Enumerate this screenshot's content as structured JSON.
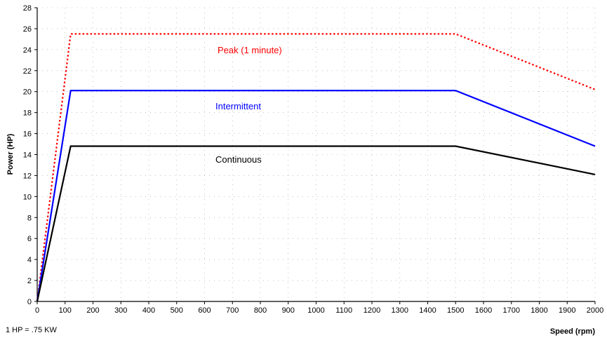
{
  "chart_data": {
    "type": "line",
    "xlabel": "Speed (rpm)",
    "ylabel": "Power (HP)",
    "xlim": [
      0,
      2000
    ],
    "ylim": [
      0,
      28
    ],
    "xticks": [
      0,
      100,
      200,
      300,
      400,
      500,
      600,
      700,
      800,
      900,
      1000,
      1100,
      1200,
      1300,
      1400,
      1500,
      1600,
      1700,
      1800,
      1900,
      2000
    ],
    "yticks": [
      0,
      2,
      4,
      6,
      8,
      10,
      12,
      14,
      16,
      18,
      20,
      22,
      24,
      26,
      28
    ],
    "grid": true,
    "series": [
      {
        "name": "Peak (1 minute)",
        "color": "#ff0000",
        "dash": "dotted",
        "x": [
          0,
          120,
          1500,
          2000
        ],
        "y": [
          0,
          25.5,
          25.5,
          20.2
        ]
      },
      {
        "name": "Intermittent",
        "color": "#0000ff",
        "dash": "solid",
        "x": [
          0,
          120,
          1500,
          2000
        ],
        "y": [
          0,
          20.1,
          20.1,
          14.8
        ]
      },
      {
        "name": "Continuous",
        "color": "#000000",
        "dash": "solid",
        "x": [
          0,
          120,
          1500,
          2000
        ],
        "y": [
          0,
          14.8,
          14.8,
          12.1
        ]
      }
    ],
    "annotations": [
      "1 HP = .75 KW"
    ]
  }
}
